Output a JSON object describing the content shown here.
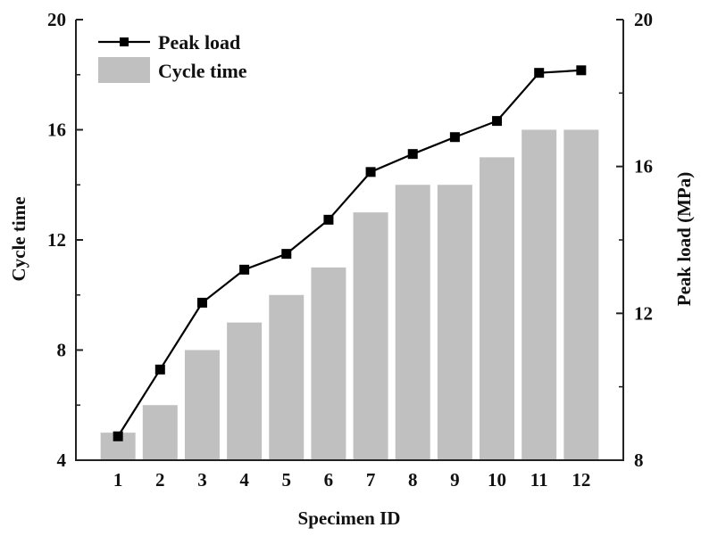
{
  "chart_data": {
    "type": "bar+line",
    "title": "",
    "xlabel": "Specimen ID",
    "categories": [
      "1",
      "2",
      "3",
      "4",
      "5",
      "6",
      "7",
      "8",
      "9",
      "10",
      "11",
      "12"
    ],
    "series": [
      {
        "name": "Cycle time",
        "type": "bar",
        "axis": "left",
        "color": "#c0c0c0",
        "values": [
          5,
          6,
          8,
          9,
          10,
          11,
          13,
          14,
          14,
          15,
          16,
          16
        ]
      },
      {
        "name": "Peak load",
        "type": "line",
        "axis": "right",
        "color": "#000000",
        "marker": "square",
        "values": [
          8.65,
          10.47,
          12.29,
          13.19,
          13.62,
          14.55,
          15.85,
          16.34,
          16.8,
          17.24,
          18.55,
          18.62
        ]
      }
    ],
    "y_left": {
      "label": "Cycle time",
      "ylim": [
        4,
        20
      ],
      "ticks": [
        4,
        8,
        12,
        16,
        20
      ],
      "tick_labels": [
        "4",
        "8",
        "12",
        "16",
        "20"
      ],
      "minor_ticks": [
        6,
        10,
        14,
        18
      ]
    },
    "y_right": {
      "label": "Peak load (MPa)",
      "ylim": [
        8,
        20
      ],
      "ticks": [
        8,
        12,
        16,
        20
      ],
      "tick_labels": [
        "8",
        "12",
        "16",
        "20"
      ],
      "minor_ticks": [
        10,
        14,
        18
      ]
    },
    "legend": {
      "position": "upper left",
      "entries": [
        {
          "label": "Peak load",
          "kind": "line-marker"
        },
        {
          "label": "Cycle time",
          "kind": "bar"
        }
      ]
    },
    "grid": false
  }
}
